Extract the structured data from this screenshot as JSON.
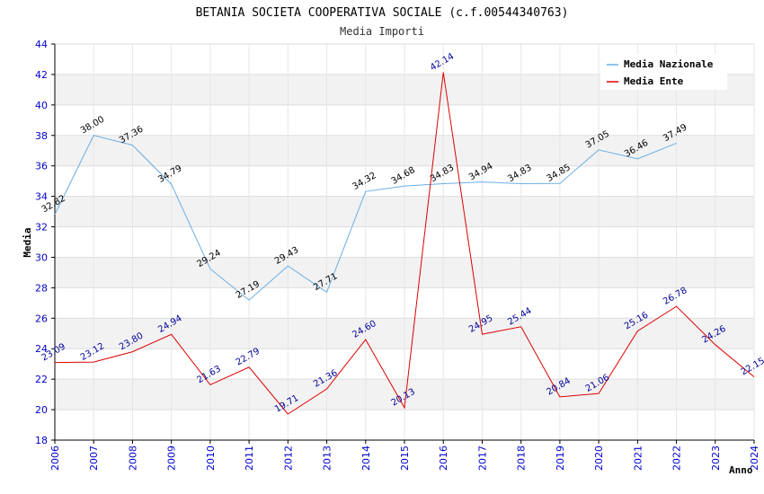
{
  "chart_data": {
    "type": "line",
    "title": "BETANIA SOCIETA COOPERATIVA SOCIALE (c.f.00544340763)",
    "subtitle": "Media Importi",
    "xlabel": "Anno",
    "ylabel": "Media",
    "ylim": [
      18,
      44
    ],
    "yticks": [
      18,
      20,
      22,
      24,
      26,
      28,
      30,
      32,
      34,
      36,
      38,
      40,
      42,
      44
    ],
    "x": [
      2006,
      2007,
      2008,
      2009,
      2010,
      2011,
      2012,
      2013,
      2014,
      2015,
      2016,
      2017,
      2018,
      2019,
      2020,
      2021,
      2022,
      2023,
      2024
    ],
    "legend_position": "top-right",
    "grid": true,
    "series": [
      {
        "name": "Media Nazionale",
        "color": "#6aaee6",
        "values": [
          32.82,
          38.0,
          37.36,
          34.79,
          29.24,
          27.19,
          29.43,
          27.71,
          34.32,
          34.68,
          34.83,
          34.94,
          34.83,
          34.85,
          37.05,
          36.46,
          37.49,
          null,
          null
        ],
        "labels": [
          "32.82",
          "38.00",
          "37.36",
          "34.79",
          "29.24",
          "27.19",
          "29.43",
          "27.71",
          "34.32",
          "34.68",
          "34.83",
          "34.94",
          "34.83",
          "34.85",
          "37.05",
          "36.46",
          "37.49",
          null,
          null
        ]
      },
      {
        "name": "Media Ente",
        "color": "#dd0000",
        "values": [
          23.09,
          23.12,
          23.8,
          24.94,
          21.63,
          22.79,
          19.71,
          21.36,
          24.6,
          20.13,
          42.14,
          24.95,
          25.44,
          20.84,
          21.06,
          25.16,
          26.78,
          24.26,
          22.15
        ],
        "labels": [
          "23.09",
          "23.12",
          "23.80",
          "24.94",
          "21.63",
          "22.79",
          "19.71",
          "21.36",
          "24.60",
          "20.13",
          "42.14",
          "24.95",
          "25.44",
          "20.84",
          "21.06",
          "25.16",
          "26.78",
          "24.26",
          "22.15"
        ]
      }
    ]
  }
}
